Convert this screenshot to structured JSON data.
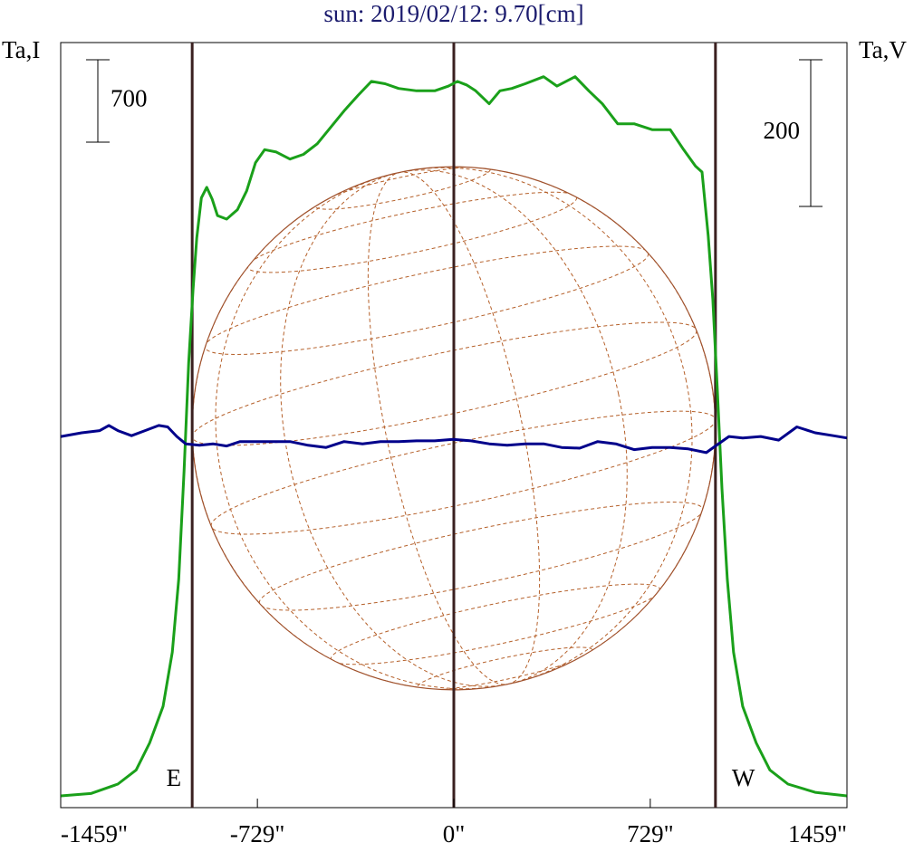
{
  "chart_data": {
    "type": "line",
    "title": "sun: 2019/02/12: 9.70[cm]",
    "ylabel": "Ta,I",
    "y2label": "Ta,V",
    "xlim": [
      -1459,
      1459
    ],
    "xticks": [
      {
        "value": -1459,
        "label": "-1459\""
      },
      {
        "value": -729,
        "label": "-729\""
      },
      {
        "value": 0,
        "label": "0\""
      },
      {
        "value": 729,
        "label": "729\""
      },
      {
        "value": 1459,
        "label": "1459\""
      }
    ],
    "ylim": [
      0,
      6500
    ],
    "y2lim": [
      -500,
      543
    ],
    "scale_bars": [
      {
        "value": 700,
        "axis": "y"
      },
      {
        "value": 200,
        "axis": "y2"
      }
    ],
    "limb_lines": [
      {
        "value": -971,
        "label": "E"
      },
      {
        "value": 0
      },
      {
        "value": 971,
        "label": "W"
      }
    ],
    "series": [
      {
        "name": "I",
        "color": "#1aa01a",
        "x": [
          -1458,
          -1347,
          -1247,
          -1179,
          -1129,
          -1079,
          -1045,
          -1021,
          -1001,
          -984,
          -968,
          -954,
          -937,
          -917,
          -897,
          -877,
          -843,
          -803,
          -769,
          -736,
          -702,
          -659,
          -608,
          -558,
          -507,
          -457,
          -407,
          -356,
          -306,
          -255,
          -205,
          -138,
          -71,
          -20,
          13,
          47,
          81,
          131,
          171,
          215,
          265,
          333,
          383,
          450,
          501,
          551,
          608,
          669,
          736,
          803,
          853,
          897,
          921,
          944,
          961,
          978,
          995,
          1015,
          1038,
          1072,
          1122,
          1173,
          1240,
          1341,
          1458
        ],
        "values": [
          100,
          120,
          200,
          320,
          550,
          860,
          1320,
          1940,
          2860,
          3780,
          4400,
          4840,
          5180,
          5270,
          5170,
          5030,
          5000,
          5080,
          5240,
          5480,
          5590,
          5570,
          5510,
          5550,
          5640,
          5780,
          5920,
          6050,
          6170,
          6150,
          6110,
          6090,
          6090,
          6130,
          6170,
          6140,
          6090,
          5980,
          6090,
          6110,
          6150,
          6210,
          6130,
          6210,
          6090,
          5980,
          5810,
          5810,
          5760,
          5760,
          5590,
          5450,
          5400,
          4860,
          4320,
          3550,
          2710,
          1940,
          1320,
          860,
          550,
          320,
          200,
          130,
          100
        ]
      },
      {
        "name": "V",
        "color": "#00008b",
        "axis": "y2",
        "x": [
          -1458,
          -1381,
          -1314,
          -1280,
          -1247,
          -1196,
          -1146,
          -1095,
          -1062,
          -1028,
          -995,
          -944,
          -894,
          -843,
          -793,
          -709,
          -608,
          -541,
          -474,
          -407,
          -339,
          -272,
          -205,
          -138,
          -71,
          -3,
          64,
          131,
          198,
          265,
          333,
          400,
          467,
          534,
          601,
          669,
          736,
          803,
          870,
          937,
          971,
          1021,
          1072,
          1139,
          1206,
          1273,
          1341,
          1408,
          1458
        ],
        "values": [
          6,
          11,
          14,
          21,
          14,
          7,
          14,
          21,
          19,
          6,
          -4,
          -6,
          -4,
          -7,
          -1,
          -1,
          -1,
          -6,
          -9,
          -1,
          -4,
          -1,
          -1,
          0,
          0,
          2,
          0,
          -4,
          -6,
          -4,
          -4,
          -9,
          -10,
          -1,
          -4,
          -12,
          -9,
          -9,
          -11,
          -16,
          -7,
          6,
          4,
          6,
          1,
          19,
          11,
          7,
          4
        ]
      }
    ]
  }
}
